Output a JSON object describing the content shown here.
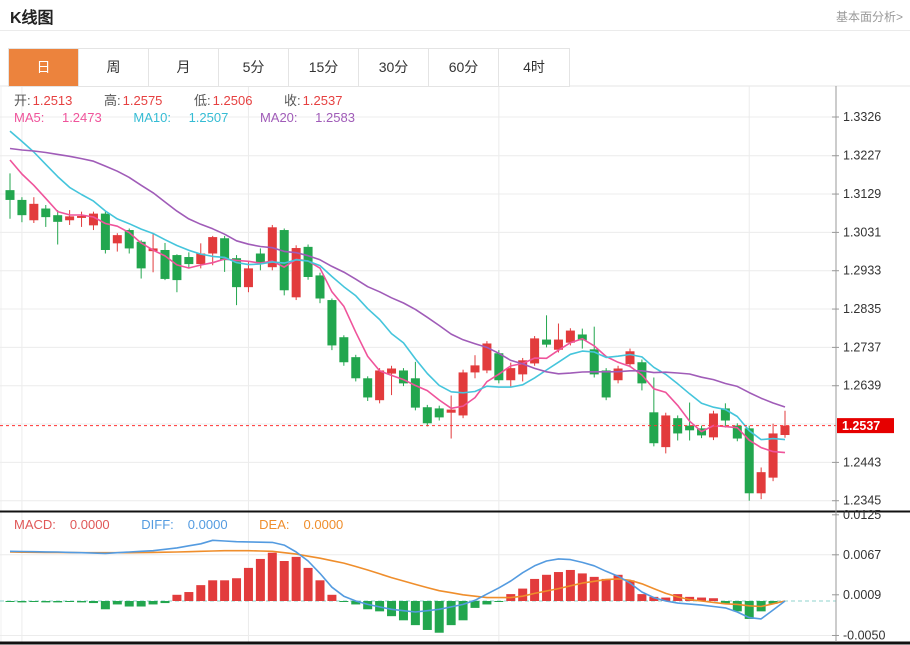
{
  "header": {
    "title": "K线图",
    "link_label": "基本面分析>"
  },
  "tabs": {
    "items": [
      "日",
      "周",
      "月",
      "5分",
      "15分",
      "30分",
      "60分",
      "4时"
    ],
    "active_index": 0
  },
  "quote": {
    "open_label": "开:",
    "open": "1.2513",
    "high_label": "高:",
    "high": "1.2575",
    "low_label": "低:",
    "low": "1.2506",
    "close_label": "收:",
    "close": "1.2537"
  },
  "ma_legend": {
    "ma5_label": "MA5:",
    "ma5": "1.2473",
    "ma10_label": "MA10:",
    "ma10": "1.2507",
    "ma20_label": "MA20:",
    "ma20": "1.2583"
  },
  "macd_legend": {
    "macd_label": "MACD:",
    "macd": "0.0000",
    "diff_label": "DIFF:",
    "diff": "0.0000",
    "dea_label": "DEA:",
    "dea": "0.0000"
  },
  "colors": {
    "up_red": "#e23b3c",
    "down_green": "#22a64e",
    "ma5_pink": "#ef549b",
    "ma10_cyan": "#45c5dc",
    "ma20_purple": "#a05cb8",
    "diff_blue": "#549be0",
    "dea_orange": "#ef8e2c",
    "current_price_line": "#ff3232",
    "price_badge_bg": "#e60000",
    "zero_dash": "#8fd3cc",
    "grid": "#ececec",
    "axis": "#999999",
    "panel_divider": "#111111",
    "tab_active_bg": "#ec833d",
    "axis_text": "#333333"
  },
  "chart_data": {
    "type": "candlestick",
    "title": "K线图 (daily K-line with MA5/MA10/MA20 and MACD panel)",
    "legend_position": "top-left overlay",
    "grid": true,
    "y_axis_labels": [
      "1.3326",
      "1.3227",
      "1.3129",
      "1.3031",
      "1.2933",
      "1.2835",
      "1.2737",
      "1.2639",
      "1.2443",
      "1.2345"
    ],
    "y_axis_step": 0.0098,
    "current_price": "1.2537",
    "last_ohlc": {
      "open": 1.2513,
      "high": 1.2575,
      "low": 1.2506,
      "close": 1.2537
    },
    "ma_display": {
      "MA5": 1.2473,
      "MA10": 1.2507,
      "MA20": 1.2583
    },
    "ma_periods": [
      5,
      10,
      20
    ],
    "vertical_gridline_candle_indices": [
      1,
      20,
      41,
      62
    ],
    "candles_ohlc": [
      [
        1.3139,
        1.3182,
        1.3066,
        1.3114
      ],
      [
        1.3114,
        1.3121,
        1.3057,
        1.3075
      ],
      [
        1.3062,
        1.3121,
        1.3055,
        1.3104
      ],
      [
        1.3092,
        1.3101,
        1.3045,
        1.307
      ],
      [
        1.3075,
        1.3088,
        1.3,
        1.3058
      ],
      [
        1.3062,
        1.3088,
        1.305,
        1.3072
      ],
      [
        1.3068,
        1.3084,
        1.3045,
        1.3073
      ],
      [
        1.3049,
        1.3084,
        1.3037,
        1.3079
      ],
      [
        1.3079,
        1.3084,
        1.2977,
        1.2986
      ],
      [
        1.3003,
        1.3029,
        1.2982,
        1.3024
      ],
      [
        1.3037,
        1.3041,
        1.2977,
        1.299
      ],
      [
        1.3007,
        1.3011,
        1.2913,
        1.2939
      ],
      [
        1.2983,
        1.3029,
        1.2929,
        1.299
      ],
      [
        1.2986,
        1.3004,
        1.2909,
        1.2912
      ],
      [
        1.2973,
        1.2975,
        1.2878,
        1.2909
      ],
      [
        1.2968,
        1.298,
        1.294,
        1.295
      ],
      [
        1.295,
        1.3003,
        1.2939,
        1.2977
      ],
      [
        1.2977,
        1.3022,
        1.2947,
        1.3019
      ],
      [
        1.3016,
        1.3022,
        1.293,
        1.296
      ],
      [
        1.2965,
        1.2973,
        1.2845,
        1.2891
      ],
      [
        1.2891,
        1.2955,
        1.2878,
        1.2939
      ],
      [
        1.2977,
        1.299,
        1.2934,
        1.2954
      ],
      [
        1.2942,
        1.305,
        1.2934,
        1.3044
      ],
      [
        1.3037,
        1.3041,
        1.287,
        1.2883
      ],
      [
        1.2865,
        1.2998,
        1.2858,
        1.2991
      ],
      [
        1.2994,
        1.3,
        1.291,
        1.2917
      ],
      [
        1.2921,
        1.2928,
        1.285,
        1.2862
      ],
      [
        1.2858,
        1.2862,
        1.273,
        1.2742
      ],
      [
        1.2763,
        1.2768,
        1.269,
        1.2699
      ],
      [
        1.2712,
        1.2718,
        1.265,
        1.2658
      ],
      [
        1.2658,
        1.2663,
        1.26,
        1.2609
      ],
      [
        1.2602,
        1.2684,
        1.2594,
        1.2678
      ],
      [
        1.267,
        1.269,
        1.2615,
        1.2683
      ],
      [
        1.2678,
        1.2684,
        1.2638,
        1.2645
      ],
      [
        1.2658,
        1.27,
        1.2576,
        1.2583
      ],
      [
        1.2584,
        1.259,
        1.2535,
        1.2543
      ],
      [
        1.2581,
        1.2588,
        1.255,
        1.2558
      ],
      [
        1.257,
        1.2614,
        1.2504,
        1.2578
      ],
      [
        1.2563,
        1.268,
        1.2556,
        1.2673
      ],
      [
        1.2673,
        1.2717,
        1.2658,
        1.2691
      ],
      [
        1.2678,
        1.2753,
        1.2671,
        1.2747
      ],
      [
        1.2722,
        1.273,
        1.2645,
        1.2653
      ],
      [
        1.2653,
        1.2698,
        1.2637,
        1.2684
      ],
      [
        1.2668,
        1.271,
        1.265,
        1.2704
      ],
      [
        1.2696,
        1.2766,
        1.269,
        1.276
      ],
      [
        1.2757,
        1.2819,
        1.2737,
        1.2744
      ],
      [
        1.2731,
        1.2798,
        1.2724,
        1.2757
      ],
      [
        1.2749,
        1.2786,
        1.2742,
        1.278
      ],
      [
        1.277,
        1.2785,
        1.2734,
        1.2755
      ],
      [
        1.2732,
        1.279,
        1.266,
        1.2668
      ],
      [
        1.2678,
        1.2684,
        1.2602,
        1.2609
      ],
      [
        1.2653,
        1.269,
        1.2645,
        1.2683
      ],
      [
        1.2694,
        1.2734,
        1.2686,
        1.2727
      ],
      [
        1.2699,
        1.2706,
        1.2627,
        1.2645
      ],
      [
        1.2571,
        1.266,
        1.2484,
        1.2492
      ],
      [
        1.2482,
        1.257,
        1.2466,
        1.2563
      ],
      [
        1.2556,
        1.2563,
        1.2499,
        1.2517
      ],
      [
        1.2537,
        1.2596,
        1.2499,
        1.2525
      ],
      [
        1.253,
        1.2537,
        1.2505,
        1.2512
      ],
      [
        1.2507,
        1.2575,
        1.25,
        1.2568
      ],
      [
        1.2581,
        1.2594,
        1.2532,
        1.255
      ],
      [
        1.2537,
        1.2543,
        1.2497,
        1.2504
      ],
      [
        1.253,
        1.2537,
        1.2345,
        1.2364
      ],
      [
        1.2364,
        1.243,
        1.2349,
        1.2418
      ],
      [
        1.2404,
        1.2542,
        1.2395,
        1.2517
      ],
      [
        1.2513,
        1.2575,
        1.2506,
        1.2537
      ]
    ],
    "ma_prehistory_closes_estimated": [
      1.315,
      1.3155,
      1.315,
      1.3155,
      1.317,
      1.319,
      1.321,
      1.324,
      1.328,
      1.331,
      1.334,
      1.3375,
      1.3385,
      1.337,
      1.335,
      1.3254,
      1.3248,
      1.3238,
      1.3226
    ],
    "macd_panel": {
      "y_axis_labels": [
        "0.0125",
        "0.0067",
        "0.0009",
        "-0.0050"
      ],
      "gridline_values": [
        0.0067,
        -0.005
      ],
      "display": {
        "MACD": 0.0,
        "DIFF": 0.0,
        "DEA": 0.0
      },
      "histogram": [
        -0.0001,
        -0.0002,
        -0.0001,
        -0.0002,
        -0.0002,
        -0.0001,
        -0.0002,
        -0.0003,
        -0.0012,
        -0.0005,
        -0.0008,
        -0.0008,
        -0.0005,
        -0.0003,
        0.0009,
        0.0013,
        0.0023,
        0.003,
        0.003,
        0.0033,
        0.0048,
        0.0061,
        0.007,
        0.0058,
        0.0064,
        0.0048,
        0.003,
        0.0009,
        -0.0001,
        -0.0005,
        -0.0012,
        -0.0015,
        -0.0022,
        -0.0028,
        -0.0035,
        -0.0042,
        -0.0046,
        -0.0035,
        -0.0028,
        -0.001,
        -0.0005,
        -0.0001,
        0.001,
        0.0018,
        0.0032,
        0.0038,
        0.0042,
        0.0045,
        0.004,
        0.0035,
        0.0032,
        0.0038,
        0.003,
        0.001,
        0.0006,
        0.0005,
        0.001,
        0.0006,
        0.0005,
        0.0004,
        -0.0004,
        -0.0015,
        -0.0026,
        -0.0015,
        -0.0004,
        0.0
      ],
      "diff_points": [
        [
          0,
          0.0072
        ],
        [
          4,
          0.0071
        ],
        [
          8,
          0.0069
        ],
        [
          12,
          0.0073
        ],
        [
          14,
          0.0077
        ],
        [
          16,
          0.0083
        ],
        [
          17,
          0.0088
        ],
        [
          19,
          0.0086
        ],
        [
          22,
          0.0085
        ],
        [
          23,
          0.0081
        ],
        [
          24,
          0.0071
        ],
        [
          25,
          0.0058
        ],
        [
          26,
          0.004
        ],
        [
          27,
          0.002
        ],
        [
          28,
          0.0007
        ],
        [
          29,
          0.0
        ],
        [
          30,
          -0.0005
        ],
        [
          32,
          -0.0012
        ],
        [
          34,
          -0.0016
        ],
        [
          36,
          -0.0012
        ],
        [
          38,
          -0.0005
        ],
        [
          39,
          0.0001
        ],
        [
          40,
          0.001
        ],
        [
          41,
          0.0019
        ],
        [
          42,
          0.0029
        ],
        [
          43,
          0.0041
        ],
        [
          44,
          0.0051
        ],
        [
          45,
          0.0058
        ],
        [
          46,
          0.0061
        ],
        [
          47,
          0.006
        ],
        [
          48,
          0.0056
        ],
        [
          49,
          0.0051
        ],
        [
          50,
          0.0043
        ],
        [
          51,
          0.0036
        ],
        [
          52,
          0.0026
        ],
        [
          53,
          0.0013
        ],
        [
          54,
          0.0005
        ],
        [
          55,
          0.0
        ],
        [
          56,
          -0.0003
        ],
        [
          58,
          -0.0006
        ],
        [
          60,
          -0.001
        ],
        [
          61,
          -0.0016
        ],
        [
          62,
          -0.0024
        ],
        [
          63,
          -0.0026
        ],
        [
          64,
          -0.0013
        ],
        [
          65,
          0.0
        ]
      ],
      "dea_points": [
        [
          0,
          0.0071
        ],
        [
          6,
          0.007
        ],
        [
          10,
          0.007
        ],
        [
          14,
          0.0071
        ],
        [
          18,
          0.0073
        ],
        [
          20,
          0.0073
        ],
        [
          22,
          0.0072
        ],
        [
          24,
          0.0068
        ],
        [
          26,
          0.0062
        ],
        [
          28,
          0.0055
        ],
        [
          30,
          0.0045
        ],
        [
          32,
          0.0034
        ],
        [
          34,
          0.0024
        ],
        [
          36,
          0.0015
        ],
        [
          38,
          0.0009
        ],
        [
          40,
          0.0005
        ],
        [
          42,
          0.0005
        ],
        [
          43,
          0.0007
        ],
        [
          44,
          0.0011
        ],
        [
          46,
          0.0018
        ],
        [
          48,
          0.0026
        ],
        [
          50,
          0.0031
        ],
        [
          51,
          0.0032
        ],
        [
          52,
          0.003
        ],
        [
          53,
          0.0025
        ],
        [
          54,
          0.0018
        ],
        [
          55,
          0.0011
        ],
        [
          56,
          0.0006
        ],
        [
          57,
          0.0002
        ],
        [
          58,
          0.0
        ],
        [
          59,
          -0.0002
        ],
        [
          60,
          -0.0004
        ],
        [
          61,
          -0.0005
        ],
        [
          62,
          -0.0007
        ],
        [
          63,
          -0.0008
        ],
        [
          64,
          -0.0004
        ],
        [
          65,
          0.0
        ]
      ]
    }
  }
}
